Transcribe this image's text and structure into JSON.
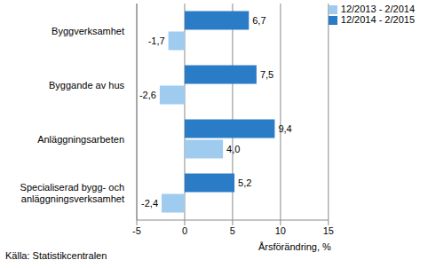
{
  "chart_data": {
    "type": "bar",
    "orientation": "horizontal",
    "categories": [
      "Byggverksamhet",
      "Byggande av hus",
      "Anläggningsarbeten",
      "Specialiserad bygg- och anläggningsverksamhet"
    ],
    "series": [
      {
        "name": "12/2014 - 2/2015",
        "color": "#2a7cc7",
        "values": [
          6.7,
          7.5,
          9.4,
          5.2
        ],
        "value_labels": [
          "6,7",
          "7,5",
          "9,4",
          "5,2"
        ]
      },
      {
        "name": "12/2013 - 2/2014",
        "color": "#9fcbef",
        "values": [
          -1.7,
          -2.6,
          4.0,
          -2.4
        ],
        "value_labels": [
          "-1,7",
          "-2,6",
          "4,0",
          "-2,4"
        ]
      }
    ],
    "xlabel": "Årsförändring, %",
    "xlim": [
      -5,
      15
    ],
    "xticks": [
      -5,
      0,
      5,
      10,
      15
    ],
    "grid": true,
    "legend": "upper right",
    "data_labels": true,
    "annotations": [
      "Källa: Statistikcentralen"
    ]
  }
}
